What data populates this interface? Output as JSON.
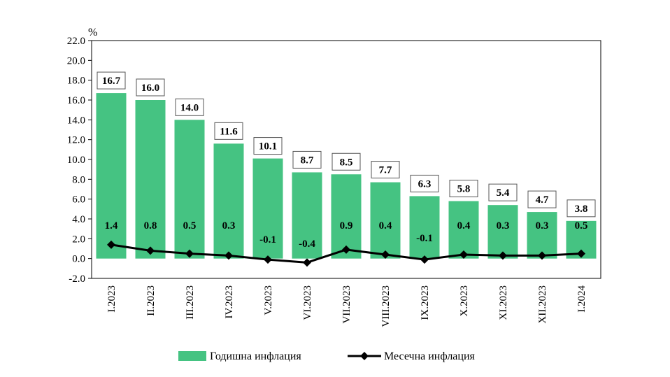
{
  "chart_data": {
    "type": "bar",
    "categories": [
      "I.2023",
      "II.2023",
      "III.2023",
      "IV.2023",
      "V.2023",
      "VI.2023",
      "VII.2023",
      "VIII.2023",
      "IX.2023",
      "X.2023",
      "XI.2023",
      "XII.2023",
      "I.2024"
    ],
    "series": [
      {
        "name": "Годишна инфлация",
        "type": "bar",
        "color": "#45c382",
        "values": [
          16.7,
          16.0,
          14.0,
          11.6,
          10.1,
          8.7,
          8.5,
          7.7,
          6.3,
          5.8,
          5.4,
          4.7,
          3.8
        ],
        "labels": [
          "16.7",
          "16.0",
          "14.0",
          "11.6",
          "10.1",
          "8.7",
          "8.5",
          "7.7",
          "6.3",
          "5.8",
          "5.4",
          "4.7",
          "3.8"
        ]
      },
      {
        "name": "Месечна инфлация",
        "type": "line",
        "color": "#000000",
        "values": [
          1.4,
          0.8,
          0.5,
          0.3,
          -0.1,
          -0.4,
          0.9,
          0.4,
          -0.1,
          0.4,
          0.3,
          0.3,
          0.5
        ],
        "labels": [
          "1.4",
          "0.8",
          "0.5",
          "0.3",
          "-0.1",
          "-0.4",
          "0.9",
          "0.4",
          "-0.1",
          "0.4",
          "0.3",
          "0.3",
          "0.5"
        ]
      }
    ],
    "ylabel": "%",
    "ylim": [
      -2.0,
      22.0
    ],
    "yticks": [
      "22.0",
      "20.0",
      "18.0",
      "16.0",
      "14.0",
      "12.0",
      "10.0",
      "8.0",
      "6.0",
      "4.0",
      "2.0",
      "0.0",
      "-2.0"
    ],
    "grid": false,
    "legend_placement": "bottom"
  }
}
